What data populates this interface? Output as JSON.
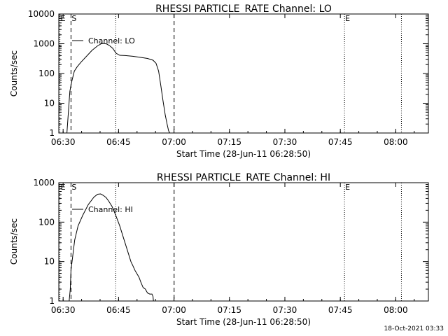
{
  "footer_timestamp": "18-Oct-2021 03:33",
  "chart_data": [
    {
      "type": "line",
      "title": "RHESSI PARTICLE_RATE Channel: LO",
      "xlabel": "Start Time (28-Jun-11 06:28:50)",
      "ylabel": "Counts/sec",
      "yscale": "log",
      "ylim": [
        1,
        10000
      ],
      "xlim_minutes": [
        0,
        100
      ],
      "xticks": [
        "06:30",
        "06:45",
        "07:00",
        "07:15",
        "07:30",
        "07:45",
        "08:00"
      ],
      "yticks": [
        "1",
        "10",
        "100",
        "1000",
        "10000"
      ],
      "legend": "Channel: LO",
      "markers": [
        {
          "label": "E",
          "t": 0.3,
          "style": "dotted"
        },
        {
          "label": "S",
          "t": 3.3,
          "style": "dashed"
        },
        {
          "label": "",
          "t": 15.4,
          "style": "dotted"
        },
        {
          "label": "",
          "t": 31.2,
          "style": "dashed"
        },
        {
          "label": "E",
          "t": 77.3,
          "style": "dotted"
        },
        {
          "label": "",
          "t": 92.7,
          "style": "dotted"
        }
      ],
      "series": [
        {
          "name": "Channel: LO",
          "x": [
            2.2,
            2.6,
            3.0,
            3.3,
            3.6,
            4.2,
            5.0,
            6.0,
            7.5,
            9.0,
            10.5,
            11.5,
            12.3,
            13.0,
            13.8,
            14.6,
            15.5,
            16.5,
            18.0,
            20.0,
            22.0,
            24.0,
            25.5,
            26.3,
            27.0,
            27.6,
            28.2,
            28.8,
            29.3,
            29.7,
            30.0
          ],
          "y": [
            1,
            5,
            25,
            40,
            60,
            120,
            170,
            240,
            380,
            600,
            850,
            1000,
            1020,
            980,
            850,
            700,
            480,
            410,
            400,
            380,
            350,
            320,
            280,
            220,
            120,
            40,
            12,
            4,
            2,
            1.2,
            1
          ]
        }
      ]
    },
    {
      "type": "line",
      "title": "RHESSI PARTICLE_RATE Channel: HI",
      "xlabel": "Start Time (28-Jun-11 06:28:50)",
      "ylabel": "Counts/sec",
      "yscale": "log",
      "ylim": [
        1,
        1000
      ],
      "xlim_minutes": [
        0,
        100
      ],
      "xticks": [
        "06:30",
        "06:45",
        "07:00",
        "07:15",
        "07:30",
        "07:45",
        "08:00"
      ],
      "yticks": [
        "1",
        "10",
        "100",
        "1000"
      ],
      "legend": "Channel: HI",
      "markers": [
        {
          "label": "E",
          "t": 0.3,
          "style": "dotted"
        },
        {
          "label": "S",
          "t": 3.3,
          "style": "dashed"
        },
        {
          "label": "",
          "t": 15.4,
          "style": "dotted"
        },
        {
          "label": "",
          "t": 31.2,
          "style": "dashed"
        },
        {
          "label": "E",
          "t": 77.3,
          "style": "dotted"
        },
        {
          "label": "",
          "t": 92.7,
          "style": "dotted"
        }
      ],
      "series": [
        {
          "name": "Channel: HI",
          "x": [
            2.8,
            3.1,
            3.3,
            3.7,
            4.3,
            5.2,
            6.5,
            8.0,
            9.5,
            10.5,
            11.3,
            12.0,
            12.8,
            13.6,
            14.4,
            15.4,
            16.5,
            17.5,
            18.5,
            19.5,
            20.0,
            20.6,
            21.1,
            21.7,
            22.2,
            22.8,
            23.4,
            24.0,
            24.6,
            25.2,
            25.5,
            25.6
          ],
          "y": [
            1,
            2,
            6,
            12,
            35,
            80,
            150,
            280,
            430,
            510,
            520,
            480,
            420,
            330,
            250,
            150,
            80,
            40,
            20,
            10,
            8,
            6,
            5,
            4,
            3,
            2.2,
            2,
            1.6,
            1.5,
            1.5,
            1.3,
            1
          ]
        }
      ]
    }
  ]
}
